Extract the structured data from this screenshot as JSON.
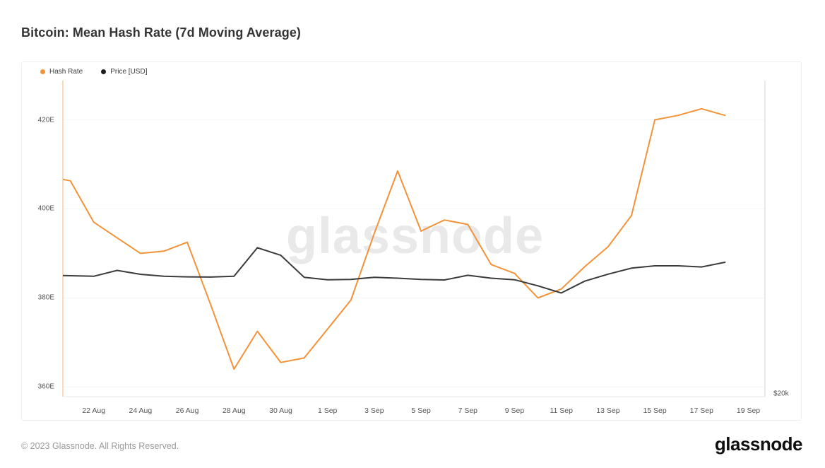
{
  "page": {
    "title": "Bitcoin: Mean Hash Rate (7d Moving Average)",
    "footer_copyright": "© 2023 Glassnode. All Rights Reserved.",
    "brand_logo": "glassnode",
    "watermark": "glassnode"
  },
  "legend": {
    "items": [
      {
        "label": "Hash Rate",
        "color": "#F2933A"
      },
      {
        "label": "Price [USD]",
        "color": "#1d1d1d"
      }
    ]
  },
  "colors": {
    "hash_line": "#F2933A",
    "price_line": "#3b3b3b",
    "left_axis_line": "#F5C28F",
    "right_axis_line": "#dcdcdc",
    "bottom_axis_line": "#e8e8e8",
    "gridline": "#f6f6f6"
  },
  "chart_data": {
    "type": "line",
    "title": "Bitcoin: Mean Hash Rate (7d Moving Average)",
    "grid": "horizontal-faint",
    "legend_position": "top-left",
    "x": [
      "20 Aug",
      "21 Aug",
      "22 Aug",
      "23 Aug",
      "24 Aug",
      "25 Aug",
      "26 Aug",
      "27 Aug",
      "28 Aug",
      "29 Aug",
      "30 Aug",
      "31 Aug",
      "1 Sep",
      "2 Sep",
      "3 Sep",
      "4 Sep",
      "5 Sep",
      "6 Sep",
      "7 Sep",
      "8 Sep",
      "9 Sep",
      "10 Sep",
      "11 Sep",
      "12 Sep",
      "13 Sep",
      "14 Sep",
      "15 Sep",
      "16 Sep",
      "17 Sep",
      "18 Sep"
    ],
    "x_tick_labels": [
      "22 Aug",
      "24 Aug",
      "26 Aug",
      "28 Aug",
      "30 Aug",
      "1 Sep",
      "3 Sep",
      "5 Sep",
      "7 Sep",
      "9 Sep",
      "11 Sep",
      "13 Sep",
      "15 Sep",
      "17 Sep",
      "19 Sep"
    ],
    "y_left": {
      "unit": "EH/s",
      "tick_labels": [
        "420E",
        "400E",
        "380E",
        "360E"
      ],
      "tick_values": [
        420,
        400,
        380,
        360
      ],
      "range": [
        357.5,
        428.8
      ]
    },
    "y_right": {
      "unit": "USD",
      "tick_labels": [
        "$20k"
      ],
      "tick_values": [
        20000
      ]
    },
    "series": [
      {
        "name": "Hash Rate",
        "axis": "left",
        "color": "#F2933A",
        "values": [
          407.3,
          406.3,
          397,
          393.5,
          390,
          390.5,
          392.5,
          378.5,
          364,
          372.5,
          365.5,
          366.5,
          373,
          379.5,
          394.5,
          408.5,
          395,
          397.5,
          396.5,
          387.5,
          385.5,
          380,
          382,
          387,
          391.5,
          398.5,
          420,
          421,
          422.5,
          421
        ]
      },
      {
        "name": "Price [USD]",
        "axis": "right",
        "color": "#3b3b3b",
        "values": [
          26100,
          26080,
          26050,
          26350,
          26150,
          26050,
          26020,
          26010,
          26050,
          27520,
          27130,
          26000,
          25870,
          25890,
          26000,
          25950,
          25890,
          25860,
          26100,
          25950,
          25870,
          25560,
          25190,
          25800,
          26160,
          26470,
          26590,
          26590,
          26530,
          26770
        ]
      }
    ]
  }
}
